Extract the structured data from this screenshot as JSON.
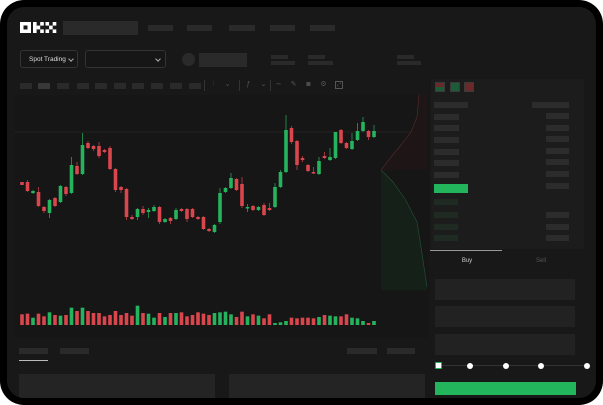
{
  "header": {
    "logo": "OKX",
    "market_dropdown": {
      "label": "Spot Trading",
      "icon": "chevron-down-icon"
    },
    "pair_dropdown": {
      "icon": "chevron-down-icon"
    }
  },
  "toolbar": {
    "icons": [
      "candles-icon",
      "chevron-down-icon",
      "indicator-icon",
      "chevron-down-icon",
      "line-icon",
      "pencil-icon",
      "camera-icon",
      "settings-icon",
      "fullscreen-icon"
    ]
  },
  "order_book": {
    "view_icons": [
      "both-sides-icon",
      "bids-only-icon",
      "asks-only-icon"
    ]
  },
  "trade_panel": {
    "tabs": [
      {
        "label": "Buy",
        "active": true
      },
      {
        "label": "Sell",
        "active": false
      }
    ],
    "slider_percent": 0,
    "submit_color": "#22b55b"
  },
  "colors": {
    "up": "#25b35e",
    "down": "#d9474d",
    "background": "#181818",
    "accent": "#22b55b"
  },
  "chart_data": {
    "type": "candlestick",
    "candles": [
      [
        118,
        118,
        115,
        115
      ],
      [
        118,
        120,
        108,
        109
      ],
      [
        107,
        110,
        106,
        109
      ],
      [
        108,
        113,
        93,
        94
      ],
      [
        93,
        94,
        87,
        89
      ],
      [
        87,
        101,
        82,
        100
      ],
      [
        102,
        103,
        93,
        94
      ],
      [
        98,
        115,
        97,
        114
      ],
      [
        113,
        114,
        104,
        106
      ],
      [
        107,
        143,
        106,
        135
      ],
      [
        134,
        138,
        125,
        126
      ],
      [
        126,
        167,
        125,
        155
      ],
      [
        157,
        159,
        151,
        152
      ],
      [
        154,
        155,
        149,
        151
      ],
      [
        154,
        158,
        142,
        144
      ],
      [
        150,
        151,
        147,
        148
      ],
      [
        152,
        154,
        130,
        131
      ],
      [
        131,
        132,
        108,
        110
      ],
      [
        113,
        114,
        107,
        110
      ],
      [
        111,
        112,
        80,
        83
      ],
      [
        83,
        85,
        80,
        81
      ],
      [
        83,
        92,
        80,
        91
      ],
      [
        91,
        94,
        85,
        87
      ],
      [
        88,
        92,
        82,
        90
      ],
      [
        89,
        95,
        88,
        93
      ],
      [
        93,
        94,
        76,
        78
      ],
      [
        78,
        82,
        77,
        81
      ],
      [
        82,
        83,
        76,
        79
      ],
      [
        81,
        92,
        80,
        90
      ],
      [
        91,
        92,
        88,
        89
      ],
      [
        91,
        92,
        78,
        81
      ],
      [
        91,
        92,
        82,
        83
      ],
      [
        83,
        84,
        80,
        81
      ],
      [
        83,
        84,
        70,
        71
      ],
      [
        71,
        72,
        68,
        69
      ],
      [
        68,
        76,
        67,
        75
      ],
      [
        78,
        112,
        76,
        107
      ],
      [
        108,
        113,
        107,
        112
      ],
      [
        112,
        127,
        111,
        122
      ],
      [
        121,
        122,
        109,
        110
      ],
      [
        116,
        123,
        92,
        94
      ],
      [
        92,
        96,
        88,
        93
      ],
      [
        94,
        95,
        89,
        90
      ],
      [
        90,
        94,
        89,
        93
      ],
      [
        95,
        97,
        84,
        85
      ],
      [
        92,
        97,
        89,
        90
      ],
      [
        93,
        117,
        92,
        113
      ],
      [
        113,
        130,
        112,
        128
      ],
      [
        128,
        185,
        127,
        170
      ],
      [
        172,
        174,
        156,
        158
      ],
      [
        159,
        160,
        130,
        135
      ],
      [
        142,
        144,
        138,
        140
      ],
      [
        135,
        136,
        128,
        129
      ],
      [
        128,
        133,
        126,
        127
      ],
      [
        126,
        143,
        125,
        139
      ],
      [
        144,
        148,
        141,
        142
      ],
      [
        140,
        152,
        139,
        143
      ],
      [
        142,
        168,
        141,
        168
      ],
      [
        170,
        171,
        156,
        157
      ],
      [
        157,
        158,
        151,
        152
      ],
      [
        151,
        167,
        150,
        159
      ],
      [
        160,
        177,
        159,
        169
      ],
      [
        169,
        183,
        168,
        178
      ],
      [
        169,
        170,
        160,
        163
      ],
      [
        163,
        175,
        162,
        169
      ]
    ],
    "volume": [
      32,
      34,
      22,
      34,
      26,
      38,
      30,
      28,
      30,
      52,
      42,
      52,
      42,
      36,
      36,
      26,
      30,
      42,
      30,
      36,
      28,
      58,
      36,
      34,
      22,
      36,
      24,
      36,
      36,
      38,
      26,
      30,
      38,
      34,
      30,
      36,
      38,
      40,
      32,
      24,
      40,
      26,
      32,
      28,
      20,
      32,
      6,
      8,
      12,
      22,
      20,
      22,
      22,
      20,
      24,
      30,
      28,
      26,
      26,
      32,
      22,
      20,
      12,
      6,
      12
    ]
  }
}
